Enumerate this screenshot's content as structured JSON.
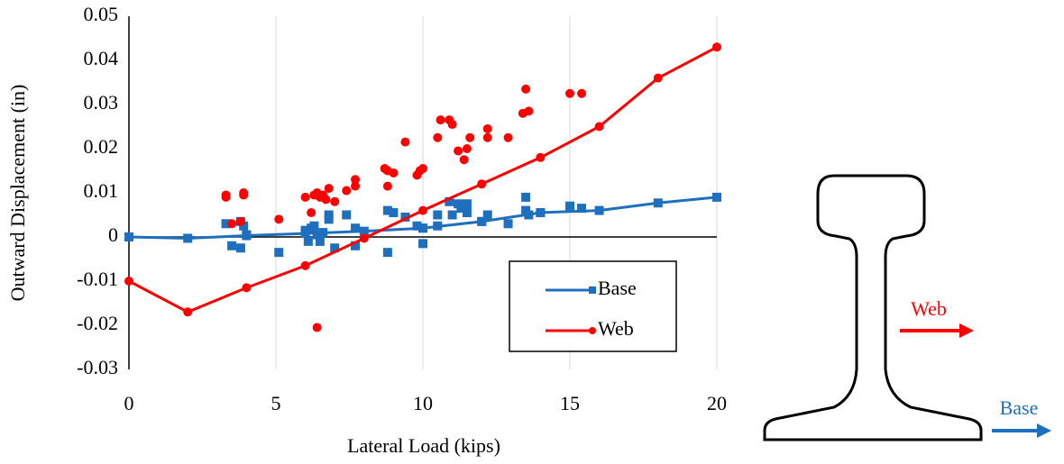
{
  "chart_data": {
    "type": "line",
    "xlabel": "Lateral Load (kips)",
    "ylabel": "Outward Displacement (in)",
    "x": [
      0,
      2,
      4,
      6,
      8,
      10,
      12,
      14,
      16,
      18,
      20
    ],
    "xlim": [
      0,
      20
    ],
    "xticks": [
      0,
      5,
      10,
      15,
      20
    ],
    "ylim": [
      -0.03,
      0.05
    ],
    "yticks": [
      0.05,
      0.04,
      0.03,
      0.02,
      0.01,
      0,
      -0.01,
      -0.02,
      -0.03
    ],
    "grid": true,
    "legend": "lower right",
    "series": [
      {
        "name": "Base",
        "color": "#1f6fbf",
        "marker": "square",
        "values": [
          0,
          -0.0003,
          0.0003,
          0.0008,
          0.0013,
          0.002,
          0.0035,
          0.0055,
          0.006,
          0.0077,
          0.009
        ],
        "scatter_x": [
          3.3,
          3.5,
          3.8,
          3.8,
          3.9,
          4.0,
          5.1,
          6.0,
          6.1,
          6.2,
          6.3,
          6.4,
          6.5,
          6.6,
          6.8,
          6.8,
          7.0,
          7.4,
          7.7,
          7.7,
          8.8,
          8.8,
          9.0,
          9.4,
          9.8,
          10.0,
          10.0,
          10.5,
          10.5,
          10.9,
          11.0,
          11.2,
          11.3,
          11.5,
          11.5,
          12.0,
          12.2,
          12.9,
          13.5,
          13.5,
          13.6,
          14.0,
          15.0,
          15.4
        ],
        "scatter_values": [
          0.003,
          -0.002,
          0.0035,
          -0.0025,
          0.0025,
          0.0005,
          -0.0035,
          0.0015,
          -0.001,
          0.002,
          0.0025,
          0.0005,
          -0.001,
          0.001,
          0.005,
          0.004,
          -0.0025,
          0.005,
          -0.002,
          0.002,
          0.006,
          -0.0035,
          0.0055,
          0.0045,
          0.0025,
          -0.0015,
          0.002,
          0.0025,
          0.005,
          0.008,
          0.005,
          0.0075,
          0.0065,
          0.0075,
          0.0055,
          0.0035,
          0.005,
          0.003,
          0.009,
          0.006,
          0.005,
          0.0055,
          0.007,
          0.0065
        ]
      },
      {
        "name": "Web",
        "color": "#ff0000",
        "marker": "circle",
        "values": [
          -0.01,
          -0.017,
          -0.0115,
          -0.0065,
          -0.0003,
          0.006,
          0.012,
          0.018,
          0.025,
          0.036,
          0.043
        ],
        "scatter_x": [
          3.3,
          3.3,
          3.5,
          3.8,
          3.9,
          3.9,
          5.1,
          6.0,
          6.2,
          6.3,
          6.4,
          6.5,
          6.6,
          6.7,
          6.8,
          6.4,
          7.0,
          7.4,
          7.7,
          7.7,
          8.7,
          8.8,
          8.8,
          9.0,
          9.4,
          9.8,
          9.9,
          10.0,
          10.5,
          10.6,
          10.9,
          11.0,
          11.2,
          11.4,
          11.5,
          11.6,
          12.2,
          12.2,
          12.9,
          13.4,
          13.5,
          13.6,
          15.0,
          15.4
        ],
        "scatter_values": [
          0.009,
          0.0095,
          0.003,
          0.0035,
          0.01,
          0.0095,
          0.004,
          0.009,
          0.0055,
          0.0095,
          0.01,
          0.009,
          0.0095,
          0.0085,
          0.011,
          -0.0205,
          0.008,
          0.0105,
          0.013,
          0.0115,
          0.0155,
          0.015,
          0.0115,
          0.0145,
          0.0215,
          0.014,
          0.015,
          0.0155,
          0.0225,
          0.0265,
          0.0265,
          0.0255,
          0.0195,
          0.0175,
          0.02,
          0.0225,
          0.0225,
          0.0245,
          0.0225,
          0.028,
          0.0335,
          0.0285,
          0.0325,
          0.0325
        ]
      }
    ]
  },
  "diagram": {
    "web_label": "Web",
    "base_label": "Base"
  }
}
